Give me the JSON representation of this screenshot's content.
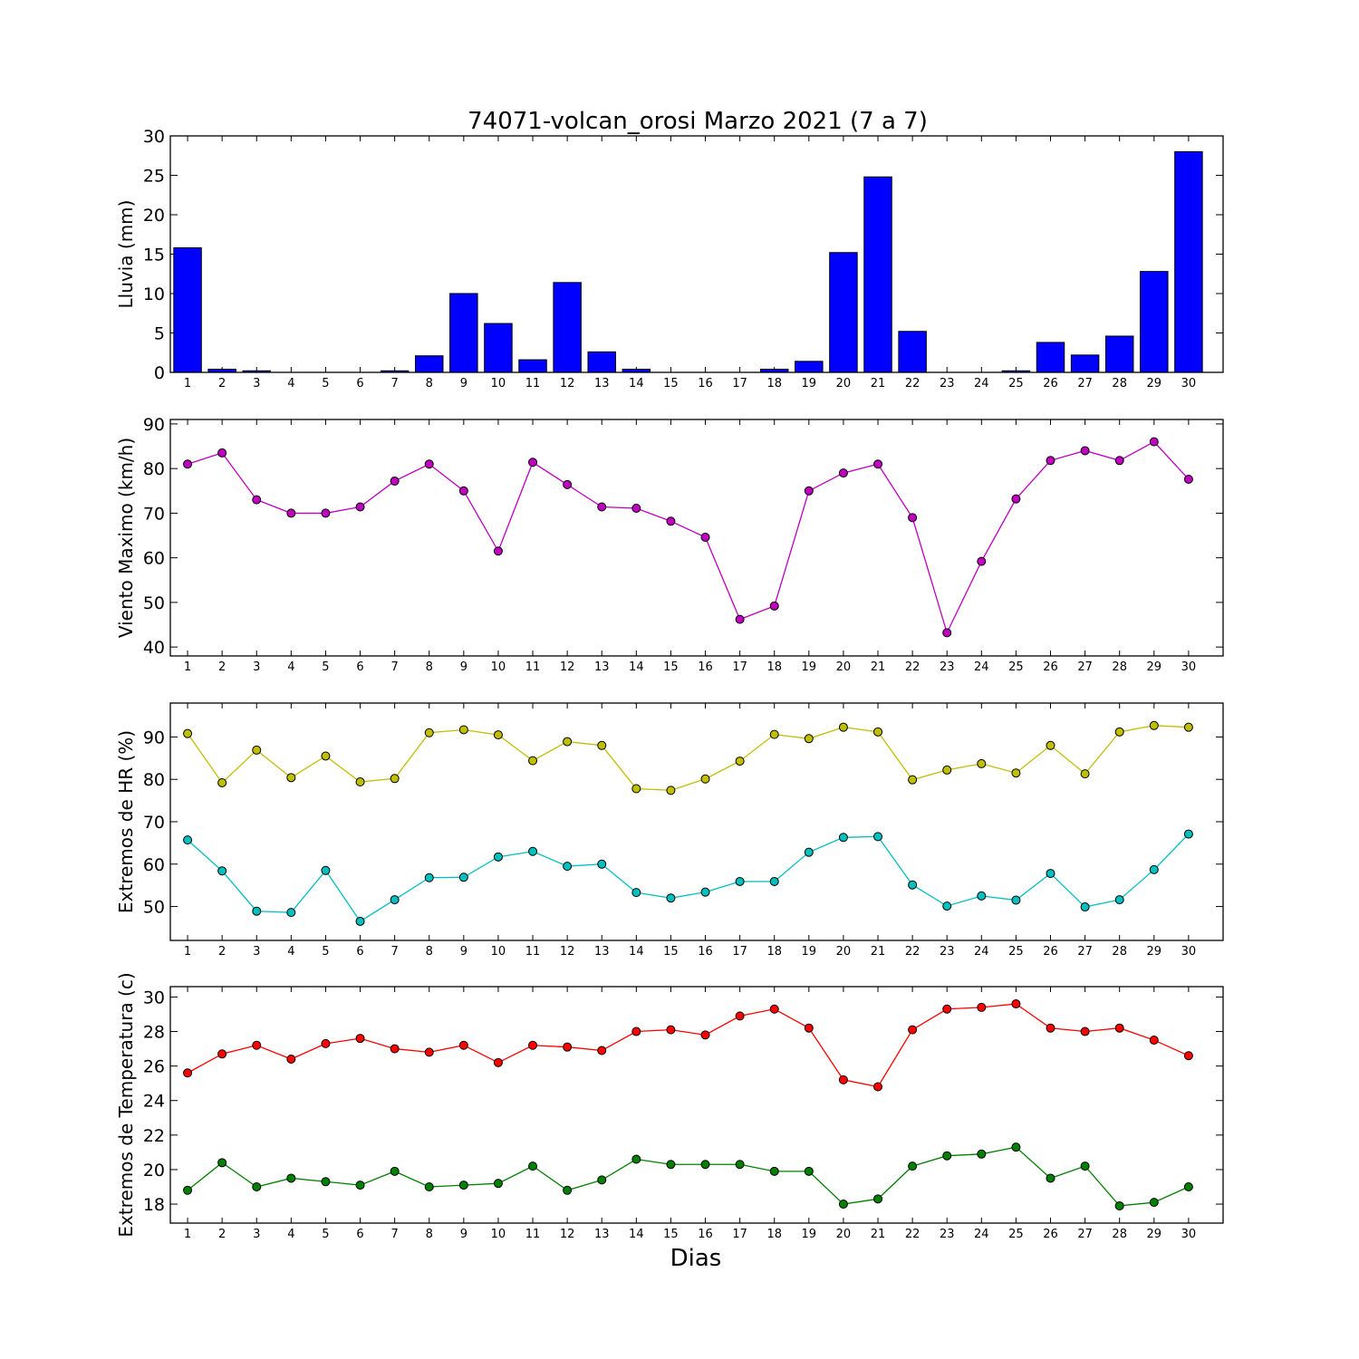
{
  "figure": {
    "title": "74071-volcan_orosi Marzo 2021  (7 a 7)",
    "xlabel": "Dias"
  },
  "chart_data": [
    {
      "type": "bar",
      "ylabel": "Lluvia (mm)",
      "x": [
        1,
        2,
        3,
        4,
        5,
        6,
        7,
        8,
        9,
        10,
        11,
        12,
        13,
        14,
        15,
        16,
        17,
        18,
        19,
        20,
        21,
        22,
        23,
        24,
        25,
        26,
        27,
        28,
        29,
        30
      ],
      "ylim": [
        0,
        30
      ],
      "yticks": [
        0,
        5,
        10,
        15,
        20,
        25,
        30
      ],
      "series": [
        {
          "color": "#0000ff",
          "values": [
            15.8,
            0.4,
            0.2,
            0,
            0,
            0,
            0.2,
            2.1,
            10.0,
            6.2,
            1.6,
            11.4,
            2.6,
            0.4,
            0,
            0,
            0,
            0.4,
            1.4,
            15.2,
            24.8,
            5.2,
            0,
            0,
            0.2,
            3.8,
            2.2,
            4.6,
            12.8,
            28.0
          ]
        }
      ]
    },
    {
      "type": "line",
      "ylabel": "Viento Maximo (km/h)",
      "x": [
        1,
        2,
        3,
        4,
        5,
        6,
        7,
        8,
        9,
        10,
        11,
        12,
        13,
        14,
        15,
        16,
        17,
        18,
        19,
        20,
        21,
        22,
        23,
        24,
        25,
        26,
        27,
        28,
        29,
        30
      ],
      "ylim": [
        38,
        91
      ],
      "yticks": [
        40,
        50,
        60,
        70,
        80,
        90
      ],
      "series": [
        {
          "color": "#bf00bf",
          "values": [
            81,
            83.5,
            73,
            70,
            70,
            71.4,
            77.2,
            81,
            75,
            61.5,
            81.4,
            76.4,
            71.4,
            71.1,
            68.2,
            64.6,
            46.2,
            49.2,
            75,
            79,
            81,
            69,
            43.2,
            59.2,
            73.2,
            81.8,
            84,
            81.8,
            86,
            77.6
          ]
        }
      ]
    },
    {
      "type": "line",
      "ylabel": "Extremos de HR (%)",
      "x": [
        1,
        2,
        3,
        4,
        5,
        6,
        7,
        8,
        9,
        10,
        11,
        12,
        13,
        14,
        15,
        16,
        17,
        18,
        19,
        20,
        21,
        22,
        23,
        24,
        25,
        26,
        27,
        28,
        29,
        30
      ],
      "ylim": [
        42,
        98
      ],
      "yticks": [
        50,
        60,
        70,
        80,
        90
      ],
      "series": [
        {
          "color": "#bfbf00",
          "values": [
            90.8,
            79.2,
            86.9,
            80.4,
            85.5,
            79.4,
            80.2,
            91.0,
            91.7,
            90.5,
            84.4,
            88.9,
            88.0,
            77.8,
            77.4,
            80.1,
            84.3,
            90.6,
            89.6,
            92.3,
            91.2,
            79.9,
            82.2,
            83.7,
            81.5,
            88.0,
            81.3,
            91.2,
            92.7,
            92.3
          ]
        },
        {
          "color": "#00bfbf",
          "values": [
            65.7,
            58.4,
            48.9,
            48.6,
            58.5,
            46.5,
            51.6,
            56.8,
            56.9,
            61.7,
            63.0,
            59.5,
            60.0,
            53.3,
            52.0,
            53.4,
            55.9,
            55.9,
            62.8,
            66.3,
            66.5,
            55.1,
            50.1,
            52.5,
            51.5,
            57.8,
            49.9,
            51.6,
            58.7,
            67.1
          ]
        }
      ]
    },
    {
      "type": "line",
      "ylabel": "Extremos de Temperatura (c)",
      "x": [
        1,
        2,
        3,
        4,
        5,
        6,
        7,
        8,
        9,
        10,
        11,
        12,
        13,
        14,
        15,
        16,
        17,
        18,
        19,
        20,
        21,
        22,
        23,
        24,
        25,
        26,
        27,
        28,
        29,
        30
      ],
      "ylim": [
        16.9,
        30.6
      ],
      "yticks": [
        18,
        20,
        22,
        24,
        26,
        28,
        30
      ],
      "series": [
        {
          "color": "#ff0000",
          "values": [
            25.6,
            26.7,
            27.2,
            26.4,
            27.3,
            27.6,
            27.0,
            26.8,
            27.2,
            26.2,
            27.2,
            27.1,
            26.9,
            28.0,
            28.1,
            27.8,
            28.9,
            29.3,
            28.2,
            25.2,
            24.8,
            28.1,
            29.3,
            29.4,
            29.6,
            28.2,
            28.0,
            28.2,
            27.5,
            26.6
          ]
        },
        {
          "color": "#008000",
          "values": [
            18.8,
            20.4,
            19.0,
            19.5,
            19.3,
            19.1,
            19.9,
            19.0,
            19.1,
            19.2,
            20.2,
            18.8,
            19.4,
            20.6,
            20.3,
            20.3,
            20.3,
            19.9,
            19.9,
            18.0,
            18.3,
            20.2,
            20.8,
            20.9,
            21.3,
            19.5,
            20.2,
            17.9,
            18.1,
            19.0
          ]
        }
      ]
    }
  ]
}
